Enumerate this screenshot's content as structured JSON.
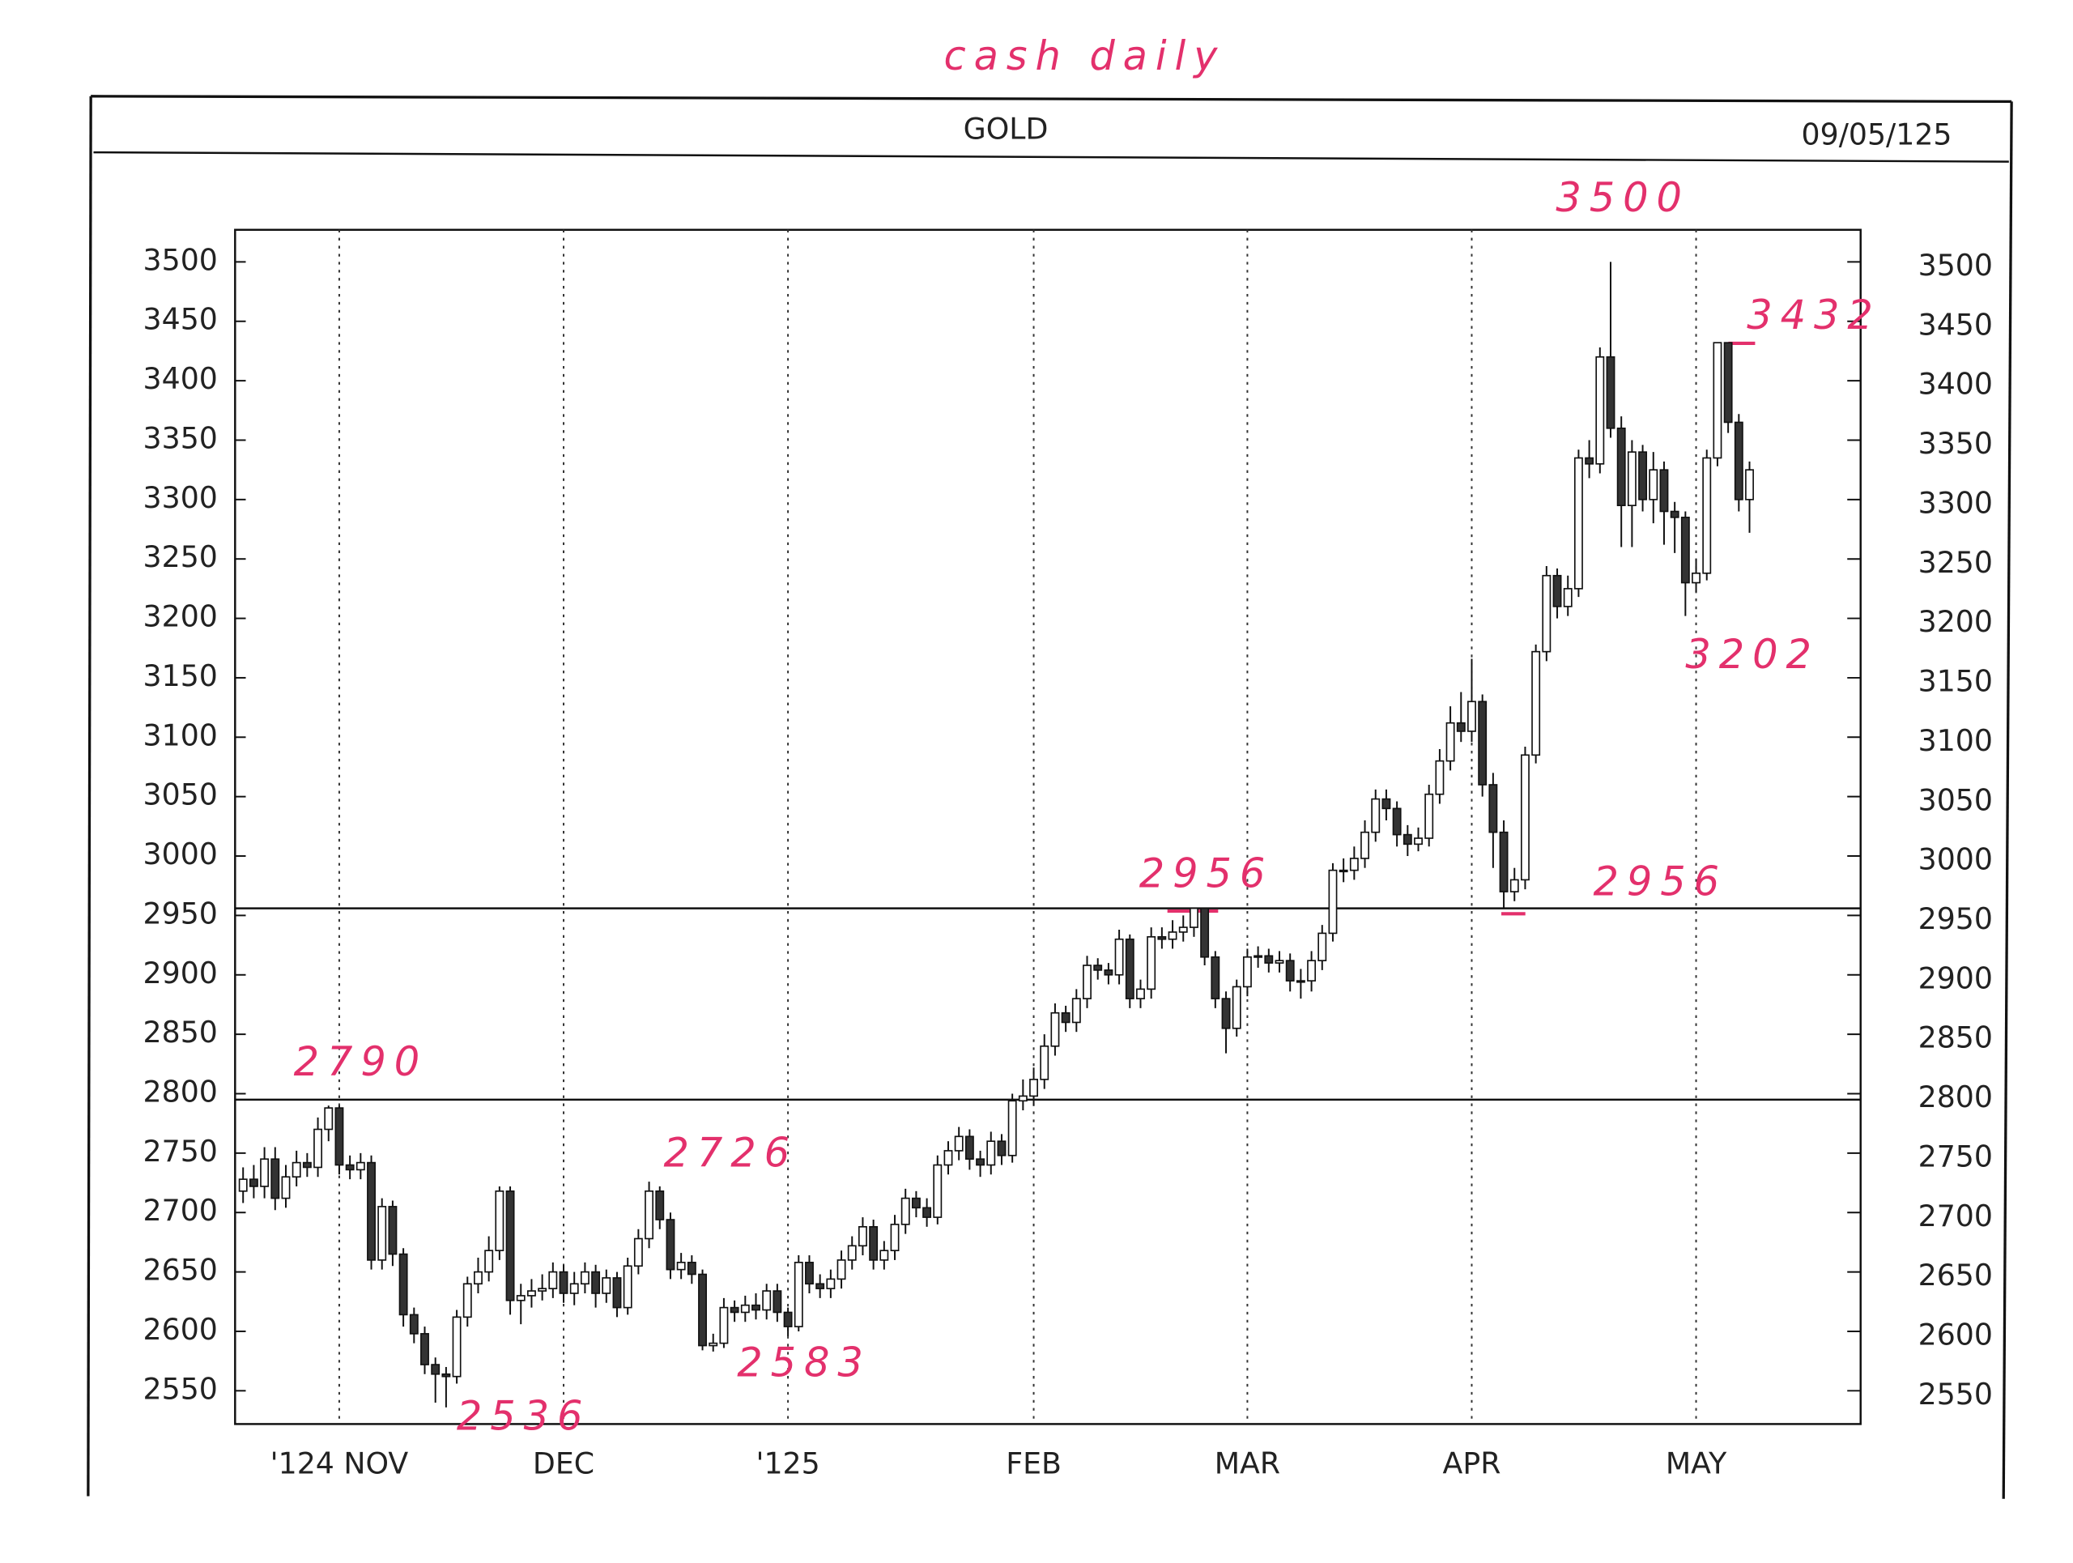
{
  "chart_data": {
    "type": "candlestick",
    "title": "GOLD",
    "date": "09/05/125",
    "up_color": "#ffffff",
    "down_color": "#333333",
    "xlim": [
      -0.75,
      151.4
    ],
    "xticks": [
      {
        "value": 9,
        "label": "'124 NOV"
      },
      {
        "value": 30,
        "label": "DEC"
      },
      {
        "value": 51,
        "label": "'125"
      },
      {
        "value": 74,
        "label": "FEB"
      },
      {
        "value": 94,
        "label": "MAR"
      },
      {
        "value": 115,
        "label": "APR"
      },
      {
        "value": 136,
        "label": "MAY"
      }
    ],
    "ylim": [
      2522,
      3527
    ],
    "yticks": [
      2550,
      2600,
      2650,
      2700,
      2750,
      2800,
      2850,
      2900,
      2950,
      3000,
      3050,
      3100,
      3150,
      3200,
      3250,
      3300,
      3350,
      3400,
      3450,
      3500
    ],
    "hlines": [
      2956,
      2795
    ],
    "annotations": [
      "cash daily",
      "3500",
      "3432",
      "3202",
      "2956",
      "2956",
      "2790",
      "2726",
      "2536",
      "2583"
    ],
    "open": [
      2718,
      2728,
      2722,
      2745,
      2712,
      2730,
      2742,
      2738,
      2770,
      2788,
      2740,
      2736,
      2742,
      2660,
      2705,
      2665,
      2614,
      2598,
      2572,
      2564,
      2562,
      2612,
      2640,
      2650,
      2668,
      2718,
      2626,
      2630,
      2634,
      2636,
      2650,
      2632,
      2640,
      2650,
      2632,
      2645,
      2620,
      2655,
      2678,
      2718,
      2694,
      2652,
      2658,
      2648,
      2588,
      2590,
      2620,
      2616,
      2622,
      2618,
      2634,
      2616,
      2604,
      2658,
      2640,
      2636,
      2644,
      2660,
      2672,
      2688,
      2660,
      2668,
      2690,
      2712,
      2704,
      2696,
      2740,
      2752,
      2764,
      2745,
      2740,
      2760,
      2748,
      2794,
      2798,
      2812,
      2840,
      2868,
      2860,
      2880,
      2908,
      2904,
      2900,
      2930,
      2880,
      2888,
      2932,
      2930,
      2936,
      2940,
      2956,
      2915,
      2880,
      2855,
      2890,
      2915,
      2916,
      2910,
      2912,
      2895,
      2895,
      2912,
      2935,
      2988,
      2988,
      2998,
      3020,
      3048,
      3040,
      3018,
      3010,
      3015,
      3052,
      3080,
      3112,
      3105,
      3130,
      3060,
      3020,
      2970,
      2980,
      3085,
      3172,
      3236,
      3210,
      3225,
      3335,
      3330,
      3420,
      3360,
      3295,
      3340,
      3300,
      3325,
      3290,
      3285,
      3230,
      3238,
      3335,
      3432,
      3365,
      3300
    ],
    "high": [
      2738,
      2740,
      2755,
      2755,
      2740,
      2752,
      2750,
      2780,
      2790,
      2790,
      2748,
      2750,
      2748,
      2712,
      2710,
      2670,
      2620,
      2604,
      2578,
      2570,
      2618,
      2646,
      2662,
      2680,
      2722,
      2722,
      2640,
      2644,
      2648,
      2658,
      2656,
      2650,
      2658,
      2656,
      2652,
      2650,
      2662,
      2686,
      2726,
      2722,
      2700,
      2666,
      2664,
      2652,
      2598,
      2628,
      2626,
      2630,
      2632,
      2640,
      2640,
      2620,
      2664,
      2664,
      2648,
      2652,
      2668,
      2680,
      2696,
      2694,
      2676,
      2698,
      2720,
      2718,
      2712,
      2748,
      2760,
      2772,
      2770,
      2752,
      2768,
      2766,
      2800,
      2812,
      2822,
      2850,
      2876,
      2874,
      2888,
      2916,
      2914,
      2910,
      2938,
      2934,
      2896,
      2940,
      2940,
      2946,
      2950,
      2956,
      2955,
      2920,
      2886,
      2896,
      2922,
      2924,
      2922,
      2920,
      2918,
      2905,
      2920,
      2942,
      2994,
      2998,
      3008,
      3030,
      3056,
      3056,
      3046,
      3026,
      3024,
      3060,
      3090,
      3126,
      3138,
      3166,
      3136,
      3070,
      3030,
      2990,
      3092,
      3178,
      3244,
      3242,
      3236,
      3342,
      3350,
      3428,
      3500,
      3370,
      3350,
      3346,
      3340,
      3332,
      3298,
      3290,
      3250,
      3342,
      3432,
      3432,
      3372,
      3332
    ],
    "low": [
      2708,
      2712,
      2712,
      2702,
      2704,
      2722,
      2730,
      2730,
      2760,
      2732,
      2728,
      2728,
      2652,
      2652,
      2655,
      2604,
      2590,
      2564,
      2540,
      2536,
      2556,
      2604,
      2632,
      2642,
      2660,
      2614,
      2606,
      2620,
      2626,
      2628,
      2624,
      2622,
      2632,
      2620,
      2624,
      2612,
      2614,
      2648,
      2670,
      2686,
      2644,
      2644,
      2640,
      2584,
      2583,
      2586,
      2608,
      2608,
      2610,
      2610,
      2608,
      2596,
      2600,
      2632,
      2628,
      2628,
      2636,
      2652,
      2664,
      2652,
      2652,
      2660,
      2682,
      2696,
      2688,
      2690,
      2732,
      2744,
      2736,
      2730,
      2732,
      2740,
      2742,
      2786,
      2790,
      2804,
      2832,
      2852,
      2852,
      2872,
      2896,
      2892,
      2892,
      2872,
      2872,
      2880,
      2922,
      2922,
      2928,
      2932,
      2908,
      2872,
      2834,
      2848,
      2882,
      2906,
      2902,
      2902,
      2886,
      2880,
      2886,
      2904,
      2928,
      2978,
      2980,
      2990,
      3012,
      3030,
      3008,
      3000,
      3004,
      3008,
      3044,
      3072,
      3096,
      3096,
      3050,
      2990,
      2956,
      2962,
      2972,
      3078,
      3164,
      3200,
      3202,
      3218,
      3318,
      3322,
      3352,
      3260,
      3260,
      3290,
      3280,
      3262,
      3255,
      3202,
      3222,
      3232,
      3328,
      3356,
      3290,
      3272
    ],
    "close": [
      2728,
      2722,
      2745,
      2712,
      2730,
      2742,
      2738,
      2770,
      2788,
      2740,
      2736,
      2742,
      2660,
      2705,
      2665,
      2614,
      2598,
      2572,
      2564,
      2562,
      2612,
      2640,
      2650,
      2668,
      2718,
      2626,
      2630,
      2634,
      2636,
      2650,
      2632,
      2640,
      2650,
      2632,
      2645,
      2620,
      2655,
      2678,
      2718,
      2694,
      2652,
      2658,
      2648,
      2588,
      2590,
      2620,
      2616,
      2622,
      2618,
      2634,
      2616,
      2604,
      2658,
      2640,
      2636,
      2644,
      2660,
      2672,
      2688,
      2660,
      2668,
      2690,
      2712,
      2704,
      2696,
      2740,
      2752,
      2764,
      2745,
      2740,
      2760,
      2748,
      2794,
      2798,
      2812,
      2840,
      2868,
      2860,
      2880,
      2908,
      2904,
      2900,
      2930,
      2880,
      2888,
      2932,
      2930,
      2936,
      2940,
      2956,
      2915,
      2880,
      2855,
      2890,
      2915,
      2916,
      2910,
      2912,
      2895,
      2895,
      2912,
      2935,
      2988,
      2988,
      2998,
      3020,
      3048,
      3040,
      3018,
      3010,
      3015,
      3052,
      3080,
      3112,
      3105,
      3130,
      3060,
      3020,
      2970,
      2980,
      3085,
      3172,
      3236,
      3210,
      3225,
      3335,
      3330,
      3420,
      3360,
      3295,
      3340,
      3300,
      3325,
      3290,
      3285,
      3230,
      3238,
      3335,
      3432,
      3365,
      3300,
      3325
    ]
  }
}
